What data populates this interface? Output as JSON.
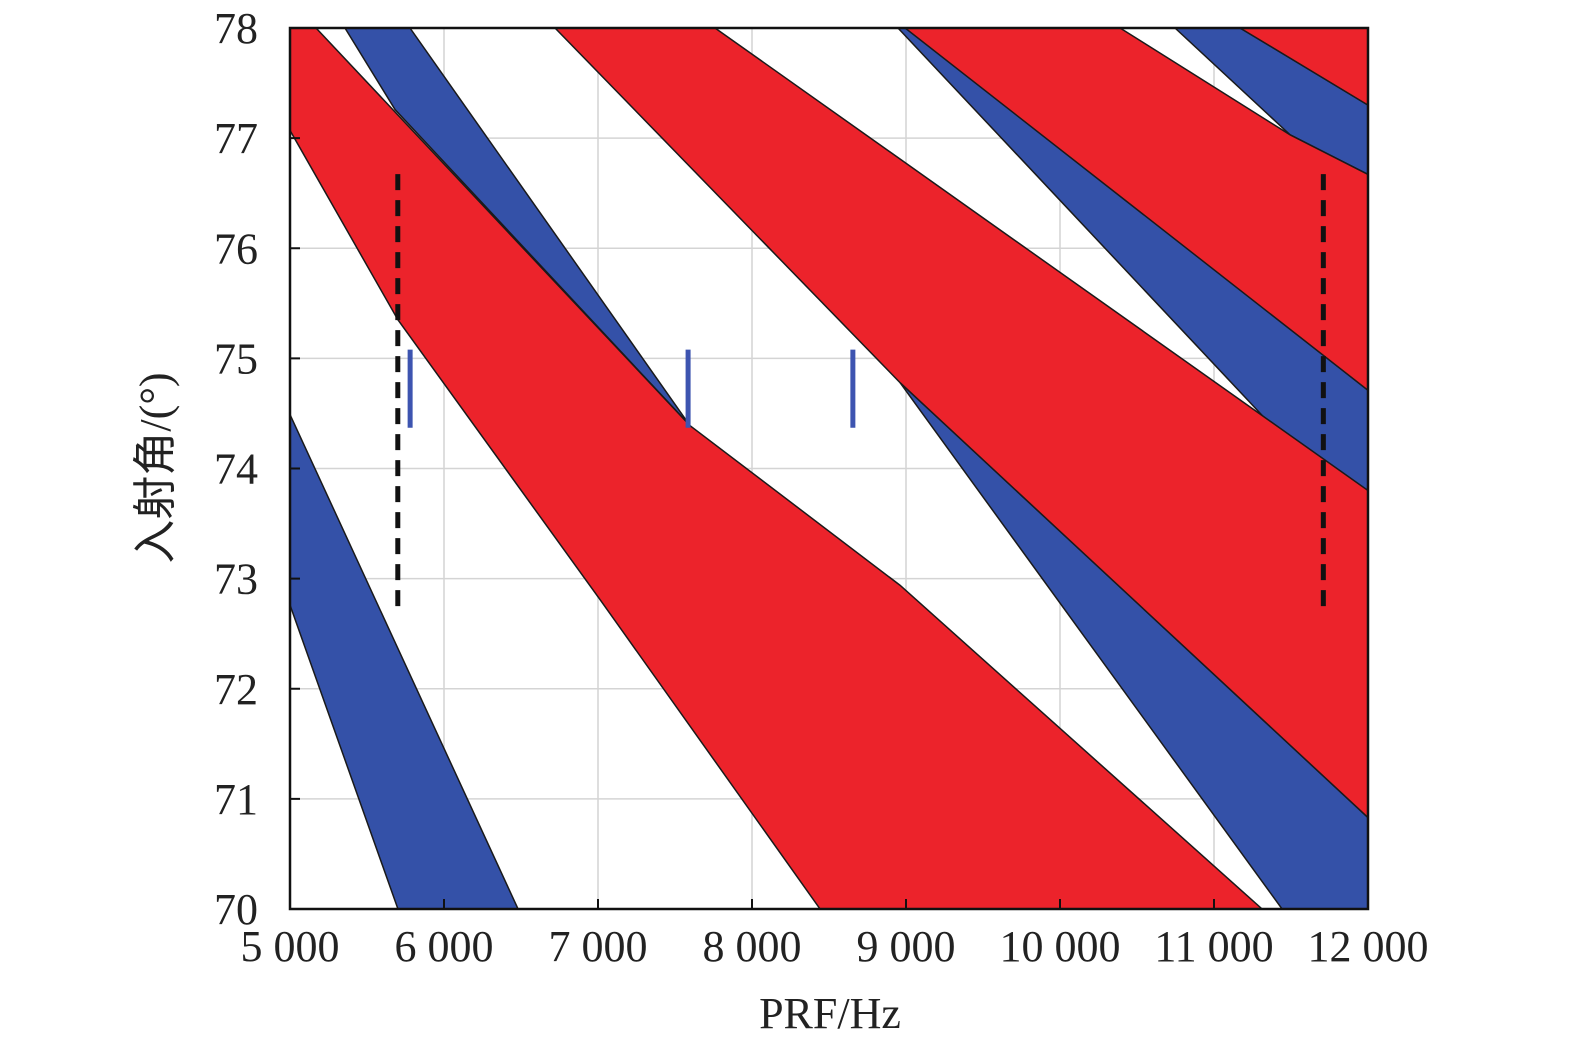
{
  "chart_data": {
    "type": "zebra",
    "xlabel": "PRF/Hz",
    "ylabel": "入射角/(°)",
    "xlim": [
      5000,
      12000
    ],
    "ylim": [
      70,
      78
    ],
    "xticks": [
      {
        "value": 5000,
        "label": "5 000"
      },
      {
        "value": 6000,
        "label": "6 000"
      },
      {
        "value": 7000,
        "label": "7 000"
      },
      {
        "value": 8000,
        "label": "8 000"
      },
      {
        "value": 9000,
        "label": "9 000"
      },
      {
        "value": 10000,
        "label": "10 000"
      },
      {
        "value": 11000,
        "label": "11 000"
      },
      {
        "value": 12000,
        "label": "12 000"
      }
    ],
    "yticks": [
      70,
      71,
      72,
      73,
      74,
      75,
      76,
      77,
      78
    ],
    "grid": true,
    "polygons": [
      {
        "color": "#3451a8",
        "x": [
          5000,
          6481,
          5701,
          5000
        ],
        "y": [
          74.49,
          70,
          70,
          72.76
        ]
      },
      {
        "color": "#3451a8",
        "x": [
          5357,
          5779,
          7597,
          5682
        ],
        "y": [
          78,
          78,
          74.39,
          77.26
        ]
      },
      {
        "color": "#3451a8",
        "x": [
          8948,
          9026,
          12000,
          12000
        ],
        "y": [
          78,
          78,
          74.71,
          73.46
        ]
      },
      {
        "color": "#3451a8",
        "x": [
          10747,
          11169,
          12000,
          12000,
          11494
        ],
        "y": [
          78,
          78,
          77.3,
          76.67,
          77.03
        ]
      },
      {
        "color": "#3451a8",
        "x": [
          8961,
          12000,
          12000,
          11442
        ],
        "y": [
          74.78,
          70.83,
          70,
          70
        ]
      },
      {
        "color": "#ec232b",
        "x": [
          5000,
          5169,
          7597,
          8961,
          11312,
          8442,
          7013,
          5701,
          5000
        ],
        "y": [
          78,
          78,
          74.39,
          72.94,
          70,
          70,
          72.81,
          75.35,
          77.07
        ]
      },
      {
        "color": "#ec232b",
        "x": [
          6721,
          7760,
          12000,
          12000,
          8961
        ],
        "y": [
          78,
          78,
          73.8,
          70.83,
          74.78
        ]
      },
      {
        "color": "#ec232b",
        "x": [
          8994,
          10390,
          11494,
          12000,
          12000
        ],
        "y": [
          78,
          78,
          77.03,
          76.67,
          74.71
        ]
      },
      {
        "color": "#ec232b",
        "x": [
          11169,
          12000,
          12000
        ],
        "y": [
          78,
          78,
          77.3
        ]
      }
    ],
    "vlines": [
      {
        "x": 5700,
        "y": [
          72.75,
          76.7
        ],
        "color": "#111111",
        "dashed": true
      },
      {
        "x": 11710,
        "y": [
          72.75,
          76.7
        ],
        "color": "#111111",
        "dashed": true
      },
      {
        "x": 5780,
        "y": [
          74.37,
          75.08
        ],
        "color": "#3d54b0",
        "dashed": false
      },
      {
        "x": 7585,
        "y": [
          74.37,
          75.08
        ],
        "color": "#3d54b0",
        "dashed": false
      },
      {
        "x": 8655,
        "y": [
          74.37,
          75.08
        ],
        "color": "#3d54b0",
        "dashed": false
      }
    ]
  }
}
